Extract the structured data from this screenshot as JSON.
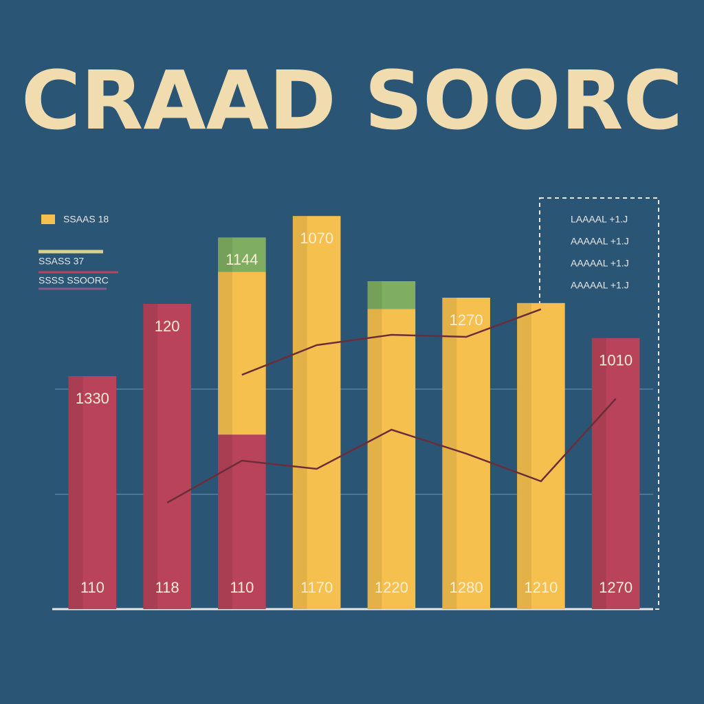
{
  "chart_data": {
    "type": "bar",
    "title": "CRAAD SOORC",
    "categories": [
      null,
      null,
      null,
      null,
      null,
      null,
      null,
      null
    ],
    "ylim": [
      0,
      100
    ],
    "series": [
      {
        "color": "#b8435a",
        "values": [
          56.5,
          74,
          42.3,
          null,
          null,
          null,
          null,
          65.7
        ]
      },
      {
        "color": "#f6c04e",
        "values": [
          null,
          null,
          39.5,
          95.3,
          72.8,
          75.5,
          74.2,
          null
        ]
      },
      {
        "color": "#7fae62",
        "values": [
          null,
          null,
          8.3,
          null,
          6.7,
          null,
          null,
          null
        ]
      }
    ],
    "lines": [
      {
        "color": "#6b2d3a",
        "values": [
          null,
          null,
          56.8,
          64,
          66.5,
          66,
          72.7,
          null
        ]
      },
      {
        "color": "#6b2d3a",
        "values": [
          null,
          25.8,
          36,
          34,
          43.5,
          37.7,
          31,
          51
        ]
      }
    ],
    "top_labels": [
      "1330",
      "120",
      "1144",
      "1070",
      null,
      "1270",
      null,
      "1010"
    ],
    "bottom_labels": [
      "110",
      "118",
      "110",
      "1170",
      "1220",
      "1280",
      "1210",
      "1270"
    ],
    "legend_left": [
      "SSAAS 18",
      "SSASS 37",
      "SSSS SSOORC"
    ],
    "legend_right": [
      "LAAAAL +1.J",
      "AAAAAL +1.J",
      "AAAAAL +1.J",
      "AAAAAL +1.J"
    ]
  }
}
